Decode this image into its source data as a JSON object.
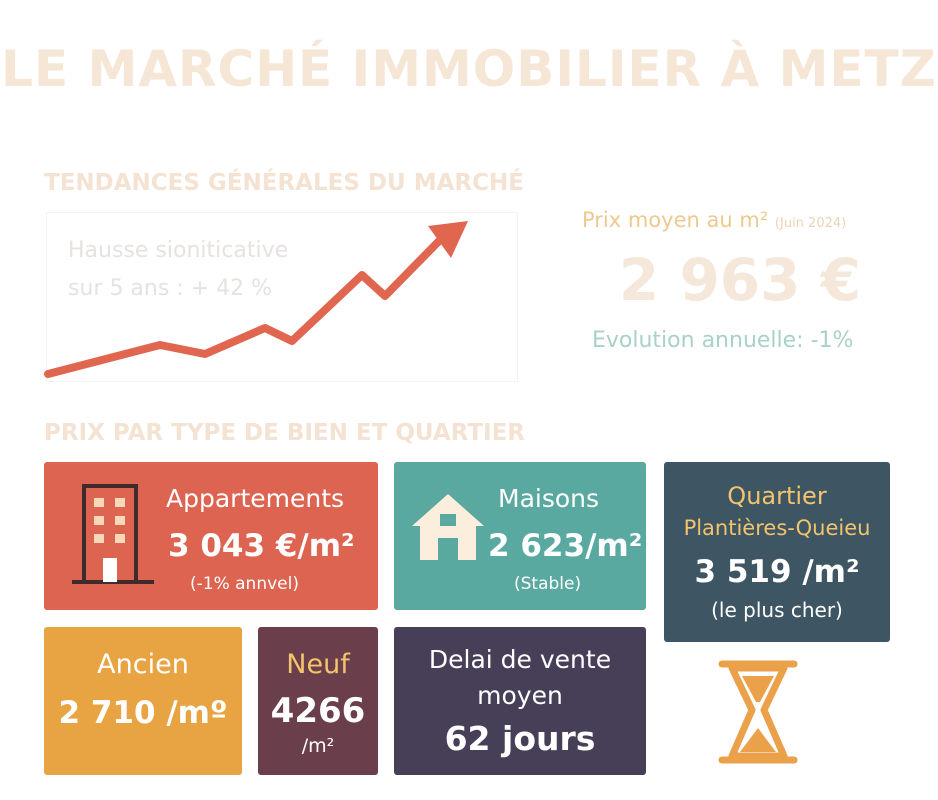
{
  "title": "LE MARCHÉ IMMOBILIER À METZ",
  "trends": {
    "heading": "TENDANCES GÉNÉRALES DU MARCHÉ",
    "line1": "Hausse sioniticative",
    "line2": "sur 5 ans : + 42 %"
  },
  "price": {
    "label": "Prix moyen au m²",
    "date": "(Juin 2024)",
    "value": "2 963 €",
    "evolution": "Evolution annuelle: -1%"
  },
  "types": {
    "heading": "PRIX PAR TYPE DE BIEN ET QUARTIER",
    "appartements": {
      "label": "Appartements",
      "value": "3 043 €/m²",
      "note": "(-1% annvel)"
    },
    "maisons": {
      "label": "Maisons",
      "value": "2 623/m²",
      "note": "(Stable)"
    },
    "quartier": {
      "label1": "Quartier",
      "label2": "Plantières-Queieu",
      "value": "3 519 /m²",
      "note": "(le plus cher)"
    },
    "ancien": {
      "label": "Ancien",
      "value": "2 710 /mº"
    },
    "neuf": {
      "label": "Neuf",
      "value": "4266",
      "unit": "/m²"
    },
    "delai": {
      "line1": "Delai de vente",
      "line2": "moyen",
      "value": "62 jours"
    }
  },
  "colors": {
    "appartements": "#dd6450",
    "maisons": "#5aa9a1",
    "quartier": "#3e5564",
    "ancien": "#e8a442",
    "neuf": "#6b3e4c",
    "delai": "#473f58",
    "trend_line": "#e06650",
    "hourglass": "#eba14a"
  },
  "icons": {
    "building": "building-icon",
    "house": "house-icon",
    "hourglass": "hourglass-icon",
    "trend": "trend-arrow-icon"
  }
}
